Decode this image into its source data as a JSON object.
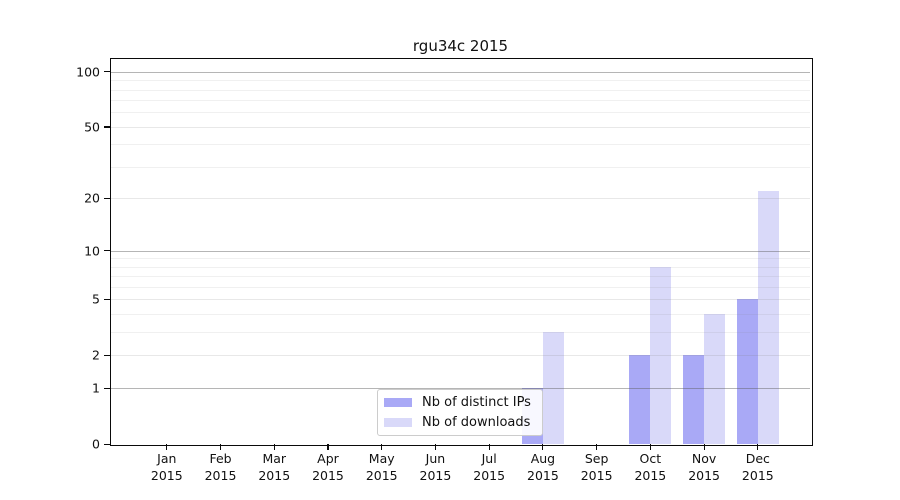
{
  "chart_data": {
    "type": "bar",
    "title": "rgu34c 2015",
    "months": [
      "Jan",
      "Feb",
      "Mar",
      "Apr",
      "May",
      "Jun",
      "Jul",
      "Aug",
      "Sep",
      "Oct",
      "Nov",
      "Dec"
    ],
    "year": "2015",
    "series": [
      {
        "name": "Nb of distinct IPs",
        "color": "#a9a9f6",
        "values": [
          0,
          0,
          0,
          0,
          0,
          0,
          0,
          1,
          0,
          2,
          2,
          5
        ]
      },
      {
        "name": "Nb of downloads",
        "color": "#d9d9f9",
        "values": [
          0,
          0,
          0,
          0,
          0,
          0,
          0,
          3,
          0,
          8,
          4,
          22
        ]
      }
    ],
    "y_axis": {
      "scale": "log1p",
      "ticks": [
        0,
        1,
        2,
        5,
        10,
        20,
        50,
        100
      ],
      "decade_ticks": [
        1,
        10,
        100
      ],
      "minor_gridlines": [
        3,
        4,
        6,
        7,
        8,
        9,
        30,
        40,
        60,
        70,
        80,
        90
      ],
      "range": [
        0,
        100
      ]
    },
    "grid": "horizontal",
    "legend_position": "inside-bottom-center"
  }
}
